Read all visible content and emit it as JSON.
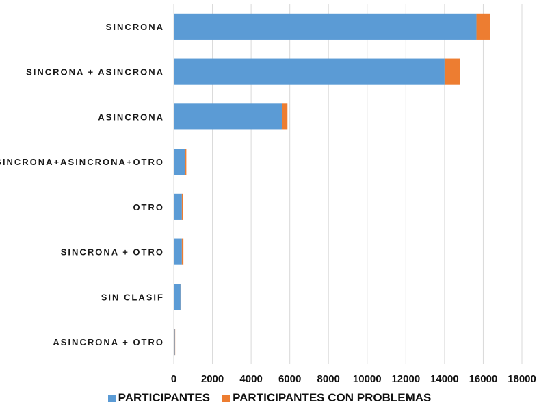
{
  "chart_data": {
    "type": "bar",
    "orientation": "horizontal",
    "stacked": true,
    "categories": [
      "SINCRONA",
      "SINCRONA + ASINCRONA",
      "ASINCRONA",
      "SINCRONA+ASINCRONA+OTRO",
      "OTRO",
      "SINCRONA + OTRO",
      "SIN CLASIF",
      "ASINCRONA + OTRO"
    ],
    "series": [
      {
        "name": "PARTICIPANTES",
        "color": "#5b9bd5",
        "values": [
          15650,
          14000,
          5600,
          600,
          420,
          420,
          350,
          60
        ]
      },
      {
        "name": "PARTICIPANTES CON PROBLEMAS",
        "color": "#ed7d31",
        "values": [
          700,
          800,
          280,
          50,
          60,
          80,
          20,
          15
        ]
      }
    ],
    "xlim": [
      0,
      18000
    ],
    "xticks": [
      0,
      2000,
      4000,
      6000,
      8000,
      10000,
      12000,
      14000,
      16000,
      18000
    ],
    "grid": true,
    "legend_position": "bottom"
  }
}
